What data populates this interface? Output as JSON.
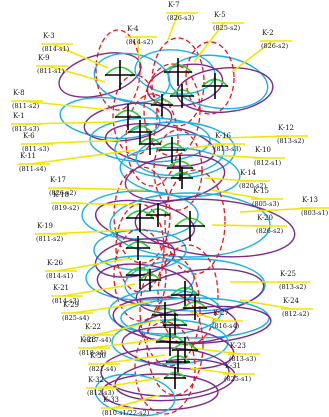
{
  "colors": {
    "background": "#ffffff",
    "leader": "#f2e600",
    "cyan_ellipse": "#1ab2e6",
    "purple_ellipse": "#7a2b8f",
    "red_dashed": "#e8141e",
    "green_arc": "#33cc33",
    "cross": "#000000"
  },
  "labels": [
    {
      "name": "K-7",
      "sub": "(826-s3)"
    },
    {
      "name": "K-5",
      "sub": "(825-s2)"
    },
    {
      "name": "K-4",
      "sub": "(814-s2)"
    },
    {
      "name": "K-3",
      "sub": "(814-s1)"
    },
    {
      "name": "K-2",
      "sub": "(826-s2)"
    },
    {
      "name": "K-9",
      "sub": "(811-s1)"
    },
    {
      "name": "K-8",
      "sub": "(811-s2)"
    },
    {
      "name": "K-1",
      "sub": "(813-s3)"
    },
    {
      "name": "K-6",
      "sub": "(811-s3)"
    },
    {
      "name": "K-12",
      "sub": "(813-s2)"
    },
    {
      "name": "K-11",
      "sub": "(811-s4)"
    },
    {
      "name": "K-10",
      "sub": "(812-s1)"
    },
    {
      "name": "K-16",
      "sub": "(813-s3)"
    },
    {
      "name": "K-17",
      "sub": "(826-s2)"
    },
    {
      "name": "K-14",
      "sub": "(820-s2)"
    },
    {
      "name": "K-18",
      "sub": "(819-s2)"
    },
    {
      "name": "K-15",
      "sub": "(805-s3)"
    },
    {
      "name": "K-13",
      "sub": "(803-s1)"
    },
    {
      "name": "K-19",
      "sub": "(811-s2)"
    },
    {
      "name": "K-20",
      "sub": "(826-s2)"
    },
    {
      "name": "K-26",
      "sub": "(814-s1)"
    },
    {
      "name": "K-25",
      "sub": "(813-s2)"
    },
    {
      "name": "K-21",
      "sub": "(814-s3)"
    },
    {
      "name": "K-24",
      "sub": "(812-s2)"
    },
    {
      "name": "K-29",
      "sub": "(825-s4)"
    },
    {
      "name": "K-22",
      "sub": "(817-s4)"
    },
    {
      "name": "K-27",
      "sub": "(816-s4)"
    },
    {
      "name": "K-28",
      "sub": "(818-s4)"
    },
    {
      "name": "K-30",
      "sub": "(821-s4)"
    },
    {
      "name": "K-23",
      "sub": "(813-s3)"
    },
    {
      "name": "K-31",
      "sub": "(825-s1)"
    },
    {
      "name": "K-32",
      "sub": "(812-s3)"
    },
    {
      "name": "K-33",
      "sub": "(810-s1/22-s2)"
    }
  ]
}
